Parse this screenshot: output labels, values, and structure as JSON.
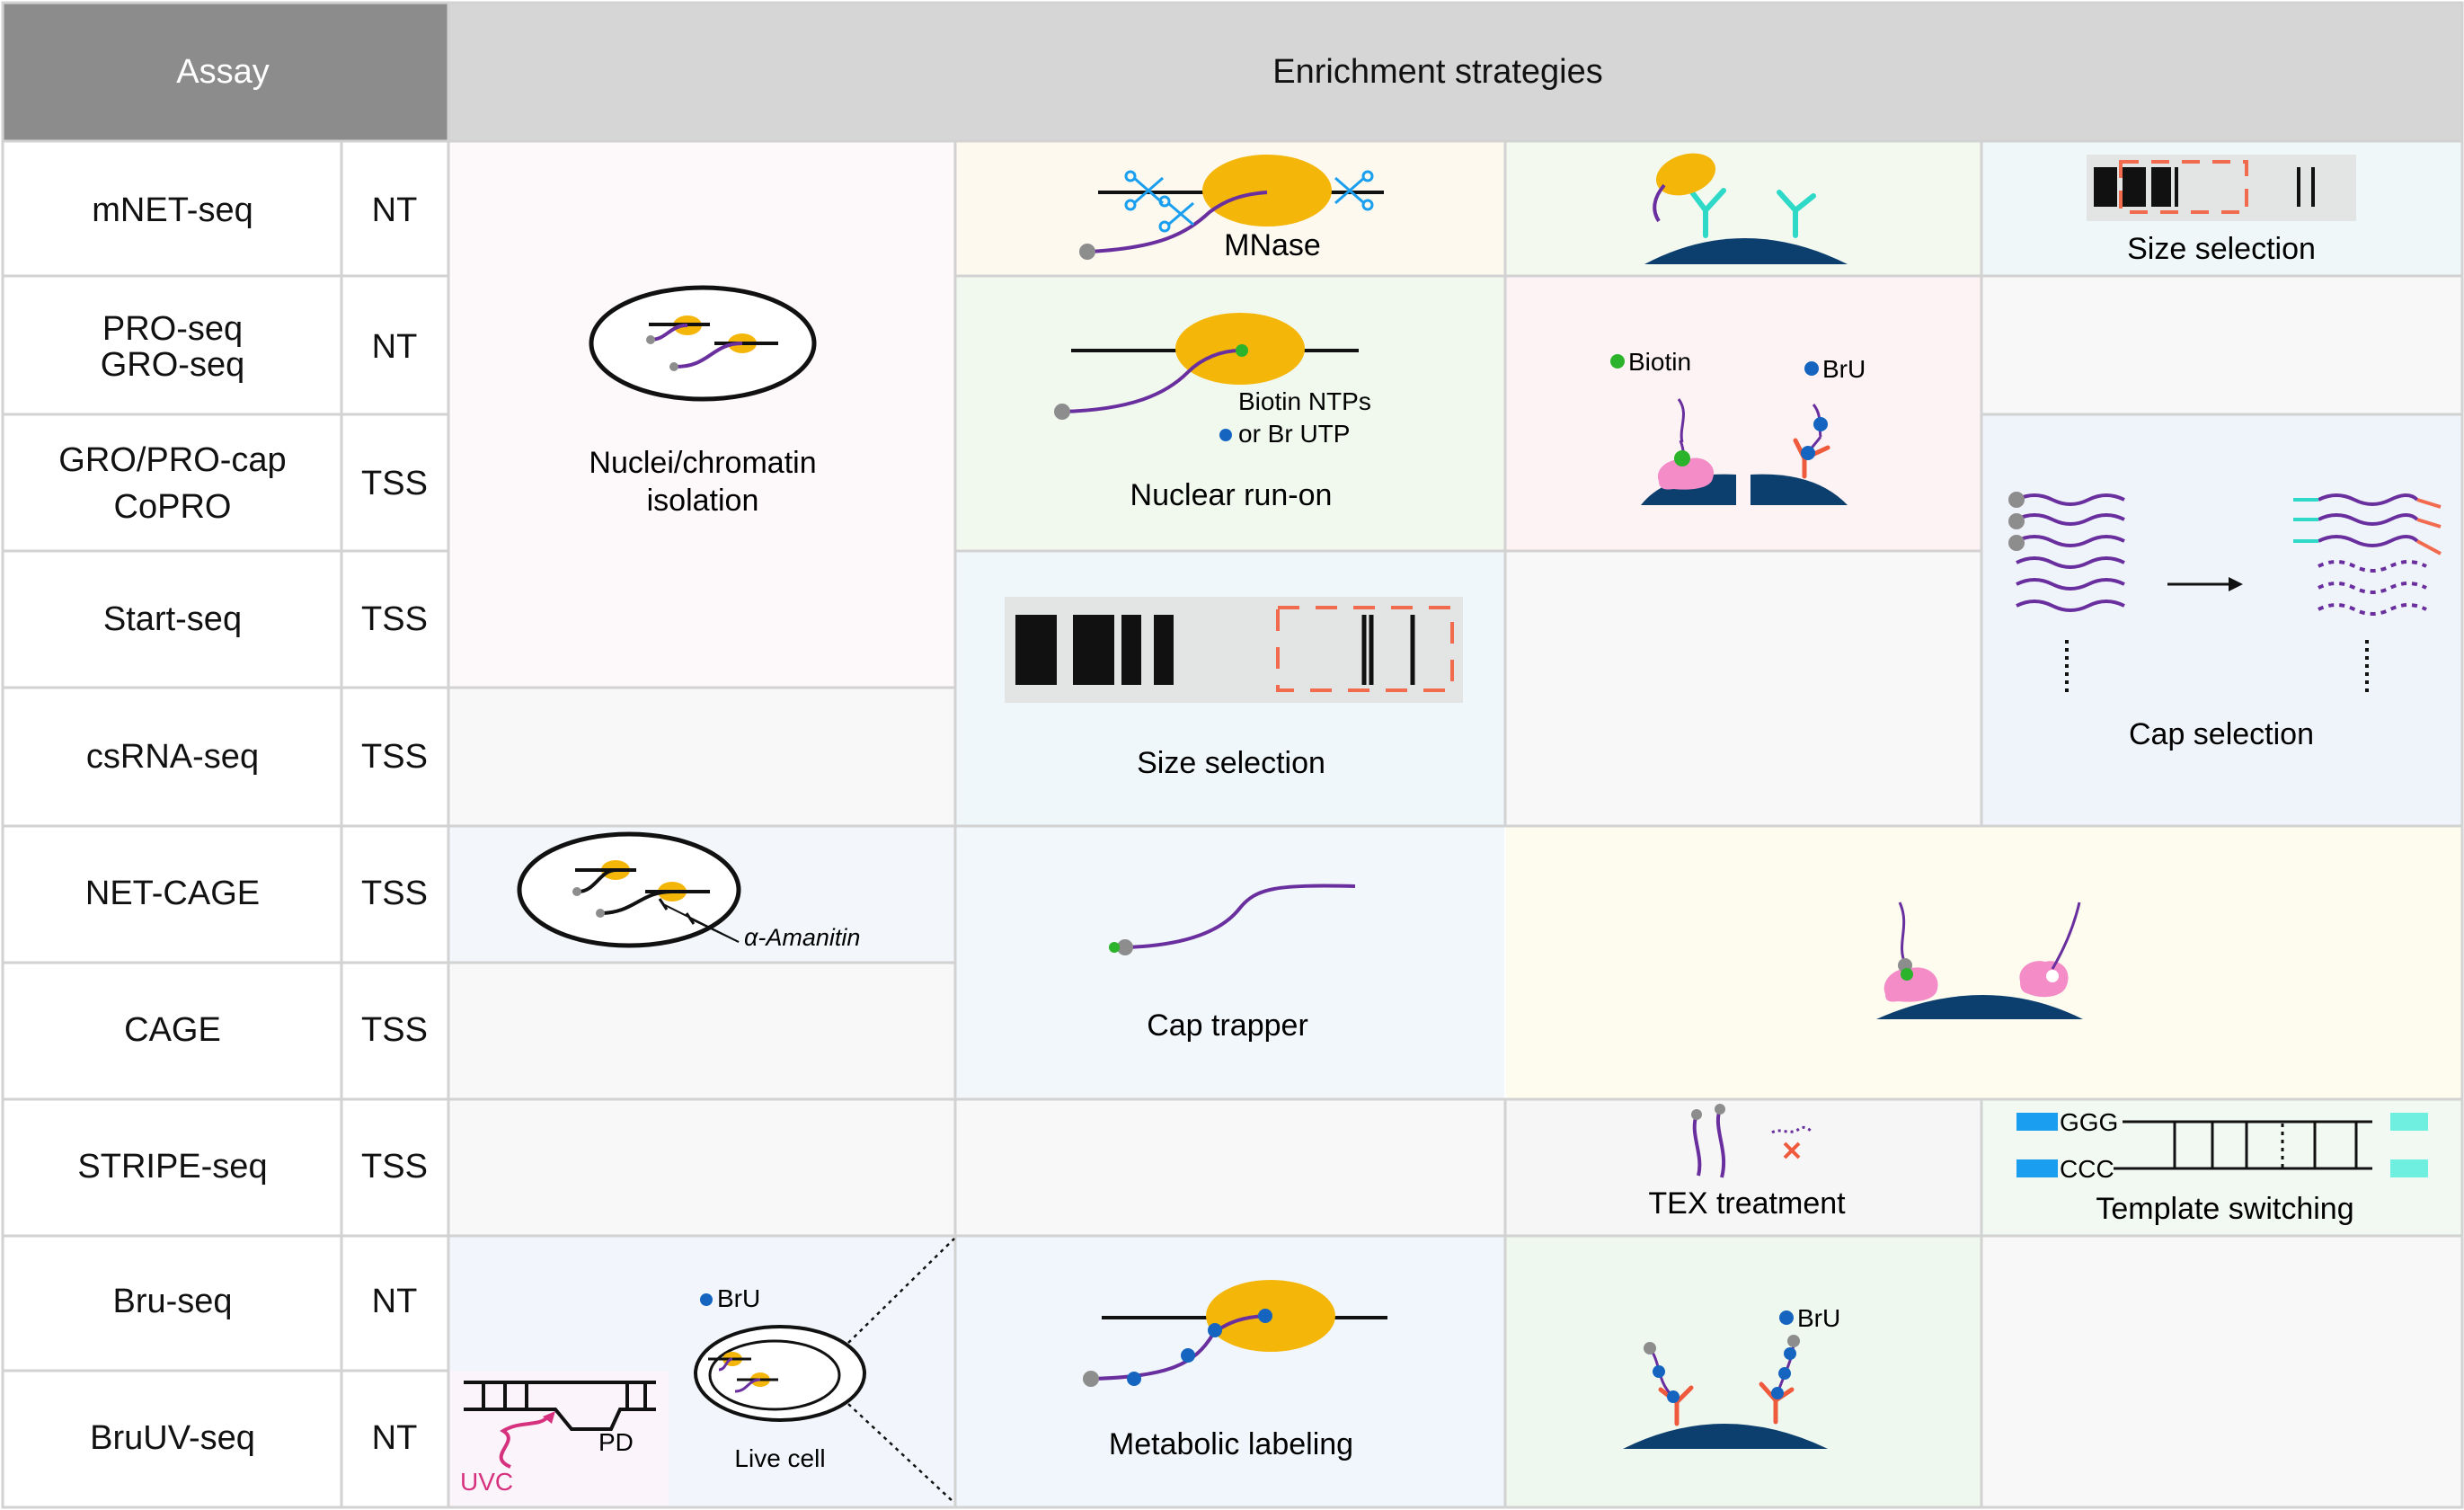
{
  "header": {
    "assay": "Assay",
    "strategies": "Enrichment strategies"
  },
  "rows": [
    {
      "assay": "mNET-seq",
      "type": "NT"
    },
    {
      "assay": [
        "PRO-seq",
        "GRO-seq"
      ],
      "type": "NT"
    },
    {
      "assay": [
        "GRO/PRO-cap",
        "CoPRO"
      ],
      "type": "TSS"
    },
    {
      "assay": "Start-seq",
      "type": "TSS"
    },
    {
      "assay": "csRNA-seq",
      "type": "TSS"
    },
    {
      "assay": "NET-CAGE",
      "type": "TSS"
    },
    {
      "assay": "CAGE",
      "type": "TSS"
    },
    {
      "assay": "STRIPE-seq",
      "type": "TSS"
    },
    {
      "assay": "Bru-seq",
      "type": "NT"
    },
    {
      "assay": "BruUV-seq",
      "type": "NT"
    }
  ],
  "labels": {
    "nuclei_line1": "Nuclei/chromatin",
    "nuclei_line2": "isolation",
    "amanitin": "α-Amanitin",
    "bru_live": "BrU",
    "live_cell": "Live cell",
    "pd": "PD",
    "uvc": "UVC",
    "mnase": "MNase",
    "size_selection_top": "Size selection",
    "biotin_ntps": "Biotin NTPs",
    "or_br_utp": "or Br UTP",
    "nuclear_run_on": "Nuclear run-on",
    "biotin": "Biotin",
    "bru_runon": "BrU",
    "size_selection": "Size selection",
    "cap_selection": "Cap selection",
    "cap_trapper": "Cap trapper",
    "tex_treatment": "TEX treatment",
    "ggg": "GGG",
    "ccc": "CCC",
    "template_switching": "Template switching",
    "metabolic_labeling": "Metabolic labeling",
    "bru_metabolic": "BrU"
  },
  "colors": {
    "header_assay_bg": "#8c8c8c",
    "header_strategies_bg": "#d6d6d6",
    "grid_line": "#d2d2d2",
    "polymerase": "#f5b60a",
    "rna": "#6a2f9e",
    "cap_dot": "#8d8d8d",
    "biotin": "#2bb32b",
    "bru": "#1565c0",
    "antibody_cyan": "#2fd9c8",
    "antibody_red": "#f05a3c",
    "bead": "#0c3f6e",
    "protein_pink": "#f48cc8",
    "size_box": "#f26b4f",
    "uvc": "#d6317f",
    "adapter_blue": "#1a9ff0",
    "adapter_cyan": "#6fefe0"
  }
}
